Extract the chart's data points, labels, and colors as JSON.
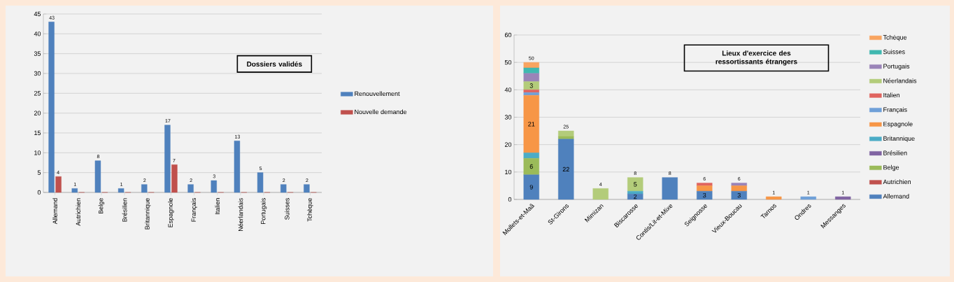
{
  "chart_data": [
    {
      "type": "bar",
      "title": "Dossiers validés",
      "categories": [
        "Allemand",
        "Autrichien",
        "Belge",
        "Brésilien",
        "Britannique",
        "Espagnole",
        "Français",
        "Italien",
        "Néerlandais",
        "Portugais",
        "Suisses",
        "Tchèque"
      ],
      "series": [
        {
          "name": "Renouvellement",
          "color": "#4f81bd",
          "values": [
            43,
            1,
            8,
            1,
            2,
            17,
            2,
            3,
            13,
            5,
            2,
            2
          ],
          "value_labels": [
            "43",
            "1",
            "8",
            "1",
            "2",
            "17",
            "2",
            "3",
            "13",
            "5",
            "2",
            "2"
          ]
        },
        {
          "name": "Nouvelle demande",
          "color": "#c0504d",
          "values": [
            4,
            0,
            0,
            0,
            0,
            7,
            0,
            0,
            0,
            0,
            0,
            0
          ],
          "value_labels": [
            "4",
            null,
            null,
            null,
            null,
            "7",
            null,
            null,
            null,
            null,
            null,
            null
          ]
        }
      ],
      "ylim": [
        0,
        45
      ],
      "yticks": [
        0,
        5,
        10,
        15,
        20,
        25,
        30,
        35,
        40,
        45
      ],
      "grid": "y",
      "legend": "right"
    },
    {
      "type": "bar",
      "stacked": true,
      "title": "Lieux d'exercice des ressortissants étrangers",
      "categories": [
        "Mollets-et-Maâ",
        "St-Girons",
        "Mimizan",
        "Biscarosse",
        "Contis/Lit-et-Mixe",
        "Seignosse",
        "Vieux-Boucau",
        "Tarnos",
        "Ondres",
        "Messanges"
      ],
      "series": [
        {
          "name": "Allemand",
          "color": "#4f81bd",
          "values": [
            9,
            22,
            0,
            2,
            8,
            3,
            3,
            0,
            0,
            0
          ],
          "value_labels": [
            "9",
            "22",
            null,
            "2",
            null,
            "3",
            "3",
            null,
            null,
            null
          ]
        },
        {
          "name": "Autrichien",
          "color": "#c0504d",
          "values": [
            0,
            0,
            0,
            0,
            0,
            0,
            0,
            0,
            0,
            0
          ]
        },
        {
          "name": "Belge",
          "color": "#9bbb59",
          "values": [
            6,
            1,
            0,
            0,
            0,
            0,
            0,
            0,
            0,
            0
          ],
          "value_labels": [
            "6",
            null,
            null,
            null,
            null,
            null,
            null,
            null,
            null,
            null
          ]
        },
        {
          "name": "Brésilien",
          "color": "#8064a2",
          "values": [
            0,
            0,
            0,
            0,
            0,
            0,
            0,
            0,
            0,
            1
          ]
        },
        {
          "name": "Britannique",
          "color": "#4bacc6",
          "values": [
            2,
            0,
            0,
            1,
            0,
            0,
            0,
            0,
            0,
            0
          ]
        },
        {
          "name": "Espagnole",
          "color": "#f79646",
          "values": [
            21,
            0,
            0,
            0,
            0,
            2,
            2,
            1,
            0,
            0
          ],
          "value_labels": [
            "21",
            null,
            null,
            null,
            null,
            null,
            null,
            null,
            null,
            null
          ]
        },
        {
          "name": "Français",
          "color": "#6fa0d8",
          "values": [
            1,
            0,
            0,
            0,
            0,
            0,
            0,
            0,
            1,
            0
          ]
        },
        {
          "name": "Italien",
          "color": "#e0645f",
          "values": [
            1,
            0,
            0,
            0,
            0,
            1,
            0,
            0,
            0,
            0
          ]
        },
        {
          "name": "Néerlandais",
          "color": "#b3cc7a",
          "values": [
            3,
            2,
            4,
            5,
            0,
            0,
            0,
            0,
            0,
            0
          ],
          "value_labels": [
            "3",
            null,
            null,
            "5",
            null,
            null,
            null,
            null,
            null,
            null
          ]
        },
        {
          "name": "Portugais",
          "color": "#9a84b8",
          "values": [
            3,
            0,
            0,
            0,
            0,
            0,
            1,
            0,
            0,
            0
          ]
        },
        {
          "name": "Suisses",
          "color": "#40b8b0",
          "values": [
            2,
            0,
            0,
            0,
            0,
            0,
            0,
            0,
            0,
            0
          ]
        },
        {
          "name": "Tchèque",
          "color": "#f9a460",
          "values": [
            2,
            0,
            0,
            0,
            0,
            0,
            0,
            0,
            0,
            0
          ]
        }
      ],
      "totals": [
        "50",
        "25",
        "4",
        "8",
        "8",
        "6",
        "6",
        "1",
        "1",
        "1"
      ],
      "ylim": [
        0,
        60
      ],
      "yticks": [
        0,
        10,
        20,
        30,
        40,
        50,
        60
      ],
      "grid": "y",
      "legend": "right"
    }
  ]
}
